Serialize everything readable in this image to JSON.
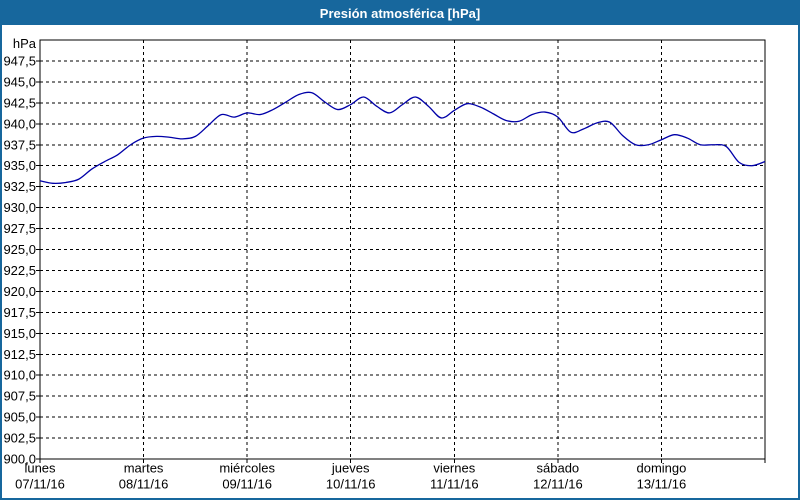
{
  "window": {
    "title": "Presión atmosférica [hPa]"
  },
  "colors": {
    "titlebar_bg": "#17679d",
    "titlebar_text": "#ffffff",
    "frame": "#17679d",
    "plot_background": "#ffffff",
    "grid": "#000000",
    "axis": "#000000",
    "line": "#0000a8",
    "label_text": "#000000"
  },
  "chart_data": {
    "type": "line",
    "title": "Presión atmosférica [hPa]",
    "ylabel": "hPa",
    "ylim": [
      900,
      950
    ],
    "ytick_step": 2.5,
    "ytick_labels": [
      "947,5",
      "945,0",
      "942,5",
      "940,0",
      "937,5",
      "935,0",
      "932,5",
      "930,0",
      "927,5",
      "925,0",
      "922,5",
      "920,0",
      "917,5",
      "915,0",
      "912,5",
      "910,0",
      "907,5",
      "905,0",
      "902,5",
      "900,0"
    ],
    "grid": "dashed",
    "legend": "none",
    "x_unit": "hours",
    "x_range_hours": [
      0,
      168
    ],
    "sample_step_hours": 3,
    "days": [
      {
        "name": "lunes",
        "date": "07/11/16"
      },
      {
        "name": "martes",
        "date": "08/11/16"
      },
      {
        "name": "miércoles",
        "date": "09/11/16"
      },
      {
        "name": "jueves",
        "date": "10/11/16"
      },
      {
        "name": "viernes",
        "date": "11/11/16"
      },
      {
        "name": "sábado",
        "date": "12/11/16"
      },
      {
        "name": "domingo",
        "date": "13/11/16"
      }
    ],
    "series": [
      {
        "name": "Presión atmosférica [hPa]",
        "color": "#0000a8",
        "values": [
          933.2,
          932.9,
          933.0,
          933.4,
          934.6,
          935.5,
          936.3,
          937.5,
          938.3,
          938.5,
          938.4,
          938.2,
          938.5,
          939.8,
          941.1,
          940.8,
          941.3,
          941.1,
          941.7,
          942.6,
          943.5,
          943.7,
          942.6,
          941.7,
          942.3,
          943.2,
          942.1,
          941.3,
          942.3,
          943.2,
          942.1,
          940.7,
          941.6,
          942.4,
          942.0,
          941.2,
          940.4,
          940.3,
          941.1,
          941.4,
          940.8,
          939.0,
          939.4,
          940.1,
          940.2,
          938.6,
          937.5,
          937.5,
          938.1,
          938.7,
          938.3,
          937.5,
          937.5,
          937.3,
          935.4,
          935.0,
          935.5
        ]
      }
    ]
  }
}
